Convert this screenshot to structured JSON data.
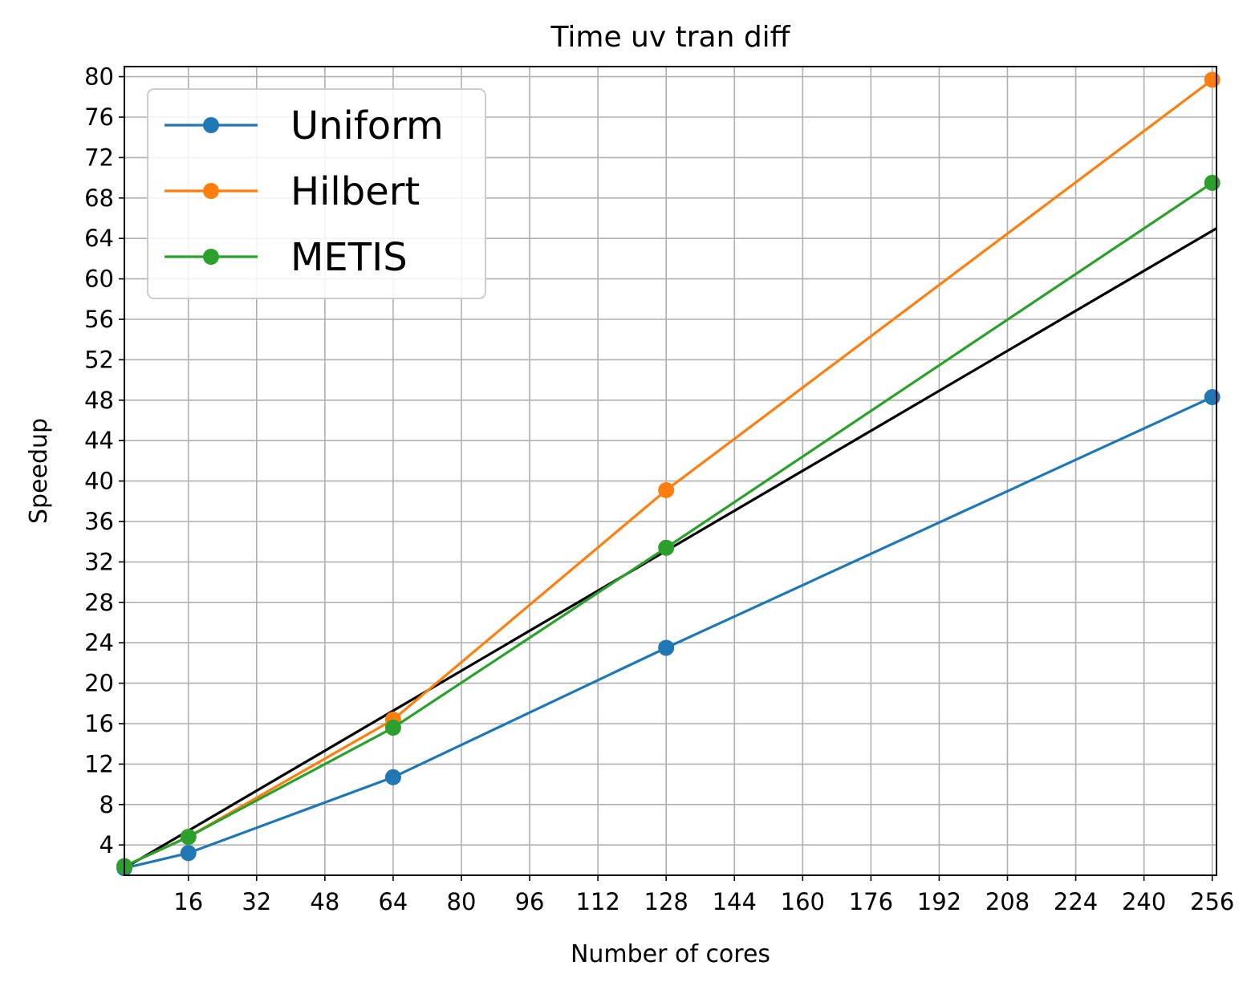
{
  "chart_data": {
    "type": "line",
    "title": "Time uv tran diff",
    "xlabel": "Number of cores",
    "ylabel": "Speedup",
    "xlim": [
      1,
      257
    ],
    "ylim": [
      1,
      81
    ],
    "x_ticks": [
      16,
      32,
      48,
      64,
      80,
      96,
      112,
      128,
      144,
      160,
      176,
      192,
      208,
      224,
      240,
      256
    ],
    "y_ticks": [
      4,
      8,
      12,
      16,
      20,
      24,
      28,
      32,
      36,
      40,
      44,
      48,
      52,
      56,
      60,
      64,
      68,
      72,
      76,
      80
    ],
    "grid": true,
    "legend_position": "top-left",
    "reference_line": {
      "color": "#000000",
      "x": [
        1,
        257
      ],
      "y": [
        1.7,
        65.0
      ]
    },
    "series": [
      {
        "name": "Uniform",
        "color": "#1f77b4",
        "x": [
          1,
          16,
          64,
          128,
          256
        ],
        "y": [
          1.7,
          3.2,
          10.7,
          23.5,
          48.3
        ]
      },
      {
        "name": "Hilbert",
        "color": "#ff7f0e",
        "x": [
          1,
          16,
          64,
          128,
          256
        ],
        "y": [
          1.9,
          4.8,
          16.4,
          39.1,
          79.7
        ]
      },
      {
        "name": "METIS",
        "color": "#2ca02c",
        "x": [
          1,
          16,
          64,
          128,
          256
        ],
        "y": [
          1.9,
          4.8,
          15.6,
          33.4,
          69.5
        ]
      }
    ]
  }
}
